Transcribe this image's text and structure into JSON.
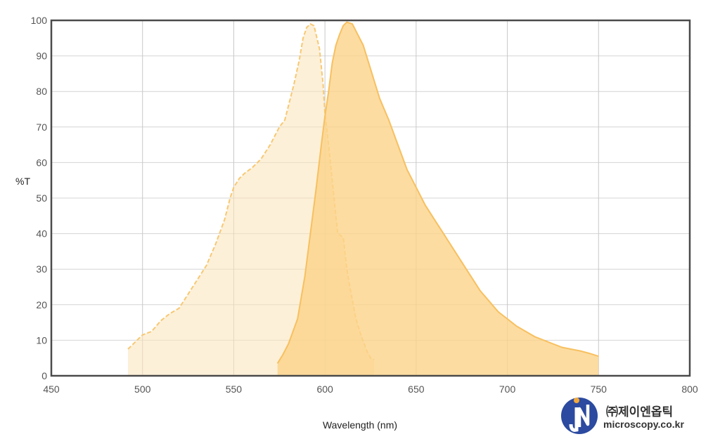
{
  "chart_data": {
    "type": "area",
    "xlabel": "Wavelength (nm)",
    "ylabel": "%T",
    "xlim": [
      450,
      800
    ],
    "ylim": [
      0,
      100
    ],
    "xticks": [
      450,
      500,
      550,
      600,
      650,
      700,
      750,
      800
    ],
    "yticks": [
      0,
      10,
      20,
      30,
      40,
      50,
      60,
      70,
      80,
      90,
      100
    ],
    "grid": true,
    "series": [
      {
        "color": "#fce4b8",
        "line_color": "#f7c873",
        "dashed": true,
        "points": [
          [
            492,
            7.5
          ],
          [
            496,
            9.5
          ],
          [
            500,
            11.5
          ],
          [
            505,
            12.5
          ],
          [
            510,
            15.5
          ],
          [
            515,
            17.5
          ],
          [
            520,
            19
          ],
          [
            525,
            23
          ],
          [
            530,
            27
          ],
          [
            535,
            31
          ],
          [
            540,
            37
          ],
          [
            545,
            44
          ],
          [
            548,
            50
          ],
          [
            550,
            53
          ],
          [
            553,
            55.5
          ],
          [
            556,
            57
          ],
          [
            560,
            58.5
          ],
          [
            565,
            61
          ],
          [
            570,
            65
          ],
          [
            575,
            70
          ],
          [
            578,
            72
          ],
          [
            580,
            76
          ],
          [
            583,
            82
          ],
          [
            586,
            89
          ],
          [
            588,
            95
          ],
          [
            590,
            98
          ],
          [
            592,
            99
          ],
          [
            594,
            98.5
          ],
          [
            597,
            92
          ],
          [
            599,
            82
          ],
          [
            600,
            74
          ],
          [
            602,
            65
          ],
          [
            604,
            55
          ],
          [
            606,
            45
          ],
          [
            607,
            40
          ],
          [
            610,
            39
          ],
          [
            612,
            30
          ],
          [
            614,
            24
          ],
          [
            617,
            16
          ],
          [
            620,
            11
          ],
          [
            623,
            7
          ],
          [
            625,
            5
          ],
          [
            627,
            4.5
          ]
        ]
      },
      {
        "color": "#fbd38a",
        "line_color": "#f7c060",
        "dashed": false,
        "points": [
          [
            574,
            3.5
          ],
          [
            577,
            6
          ],
          [
            580,
            9
          ],
          [
            585,
            16
          ],
          [
            589,
            28
          ],
          [
            592,
            40
          ],
          [
            595,
            52
          ],
          [
            598,
            65
          ],
          [
            600,
            73
          ],
          [
            602,
            80
          ],
          [
            604,
            88
          ],
          [
            606,
            93
          ],
          [
            608,
            96
          ],
          [
            610,
            98.5
          ],
          [
            612,
            99.5
          ],
          [
            615,
            99
          ],
          [
            618,
            96
          ],
          [
            621,
            93
          ],
          [
            624,
            88
          ],
          [
            627,
            83
          ],
          [
            630,
            78
          ],
          [
            635,
            72
          ],
          [
            640,
            65
          ],
          [
            645,
            58
          ],
          [
            650,
            53
          ],
          [
            655,
            48
          ],
          [
            660,
            44
          ],
          [
            665,
            40
          ],
          [
            670,
            36
          ],
          [
            675,
            32
          ],
          [
            680,
            28
          ],
          [
            685,
            24
          ],
          [
            690,
            21
          ],
          [
            695,
            18
          ],
          [
            700,
            16
          ],
          [
            705,
            14
          ],
          [
            710,
            12.5
          ],
          [
            715,
            11
          ],
          [
            720,
            10
          ],
          [
            725,
            9
          ],
          [
            730,
            8
          ],
          [
            735,
            7.5
          ],
          [
            740,
            7
          ],
          [
            745,
            6.3
          ],
          [
            750,
            5.5
          ]
        ]
      }
    ]
  },
  "logo": {
    "name_ko": "㈜제이엔옵틱",
    "url": "microscopy.co.kr",
    "primary_color": "#2b4aa0",
    "accent_color": "#f2a93b"
  }
}
